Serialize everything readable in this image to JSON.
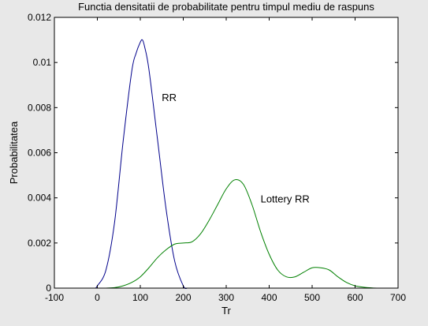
{
  "chart_data": {
    "type": "line",
    "title": "Functia densitatii de probabilitate pentru timpul mediu de raspuns",
    "xlabel": "Tr",
    "ylabel": "Probabilitatea",
    "xlim": [
      -100,
      700
    ],
    "ylim": [
      0,
      0.012
    ],
    "xticks": [
      -100,
      0,
      100,
      200,
      300,
      400,
      500,
      600,
      700
    ],
    "xtick_labels": [
      "-100",
      "0",
      "100",
      "200",
      "300",
      "400",
      "500",
      "600",
      "700"
    ],
    "yticks": [
      0,
      0.002,
      0.004,
      0.006,
      0.008,
      0.01,
      0.012
    ],
    "ytick_labels": [
      "0",
      "0.002",
      "0.004",
      "0.006",
      "0.008",
      "0.01",
      "0.012"
    ],
    "grid": false,
    "series": [
      {
        "name": "RR",
        "color": "#00008b",
        "x": [
          -5,
          0,
          20,
          40,
          60,
          80,
          90,
          100,
          105,
          110,
          120,
          140,
          160,
          180,
          200,
          210
        ],
        "y": [
          0,
          0.0001,
          0.0008,
          0.0029,
          0.0065,
          0.0096,
          0.0104,
          0.0109,
          0.011,
          0.0107,
          0.0097,
          0.0066,
          0.0035,
          0.0012,
          0.0001,
          0
        ]
      },
      {
        "name": "Lottery RR",
        "color": "#008000",
        "x": [
          20,
          40,
          60,
          80,
          100,
          120,
          140,
          160,
          180,
          200,
          220,
          240,
          260,
          280,
          300,
          320,
          340,
          360,
          380,
          400,
          420,
          440,
          460,
          480,
          500,
          520,
          540,
          560,
          580,
          600,
          620,
          640,
          660
        ],
        "y": [
          0,
          2e-05,
          0.0001,
          0.00025,
          0.0005,
          0.0009,
          0.00135,
          0.0017,
          0.00195,
          0.002,
          0.00205,
          0.0024,
          0.003,
          0.0037,
          0.0044,
          0.0048,
          0.0046,
          0.0037,
          0.0025,
          0.0015,
          0.0008,
          0.0005,
          0.0005,
          0.0007,
          0.0009,
          0.0009,
          0.0008,
          0.0005,
          0.00025,
          0.0001,
          4e-05,
          1e-05,
          0
        ]
      }
    ],
    "annotations": [
      {
        "text": "RR",
        "x": 150,
        "y": 0.0083
      },
      {
        "text": "Lottery RR",
        "x": 380,
        "y": 0.0038
      }
    ]
  }
}
